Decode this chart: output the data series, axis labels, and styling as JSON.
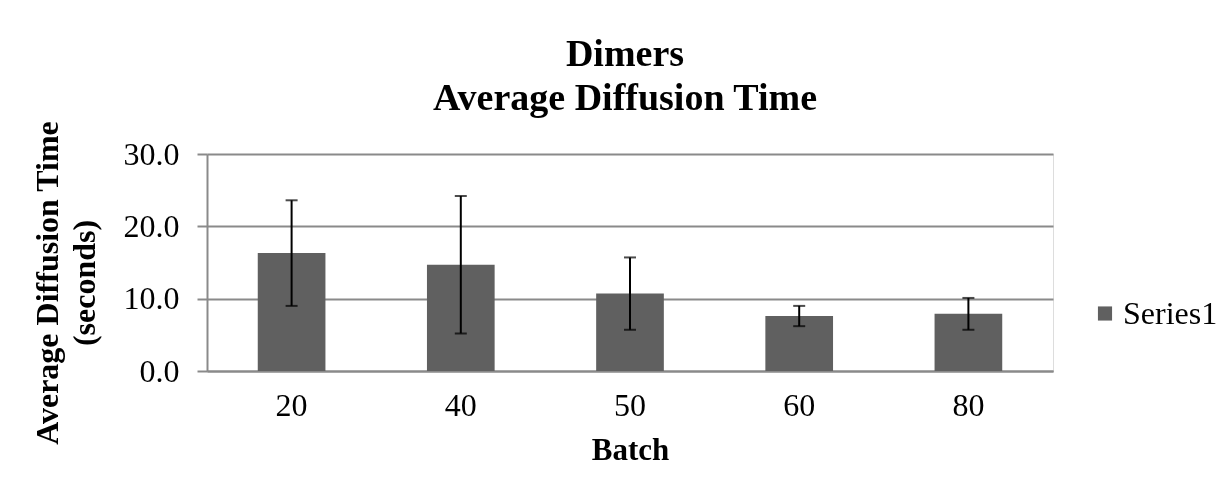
{
  "chart_data": {
    "type": "bar",
    "title": "Dimers\nAverage Diffusion Time",
    "xlabel": "Batch",
    "ylabel": "Average Diffusion Time\n(seconds)",
    "categories": [
      "20",
      "40",
      "50",
      "60",
      "80"
    ],
    "series": [
      {
        "name": "Series1",
        "color": "#606060",
        "values": [
          16.3,
          14.7,
          10.7,
          7.6,
          7.9
        ],
        "errors": [
          7.3,
          9.5,
          5.0,
          1.4,
          2.2
        ]
      }
    ],
    "ylim": [
      0,
      30
    ],
    "yticks": [
      {
        "value": 0,
        "label": "0.0"
      },
      {
        "value": 10,
        "label": "10.0"
      },
      {
        "value": 20,
        "label": "20.0"
      },
      {
        "value": 30,
        "label": "30.0"
      }
    ],
    "grid": "y",
    "legend": "right"
  }
}
